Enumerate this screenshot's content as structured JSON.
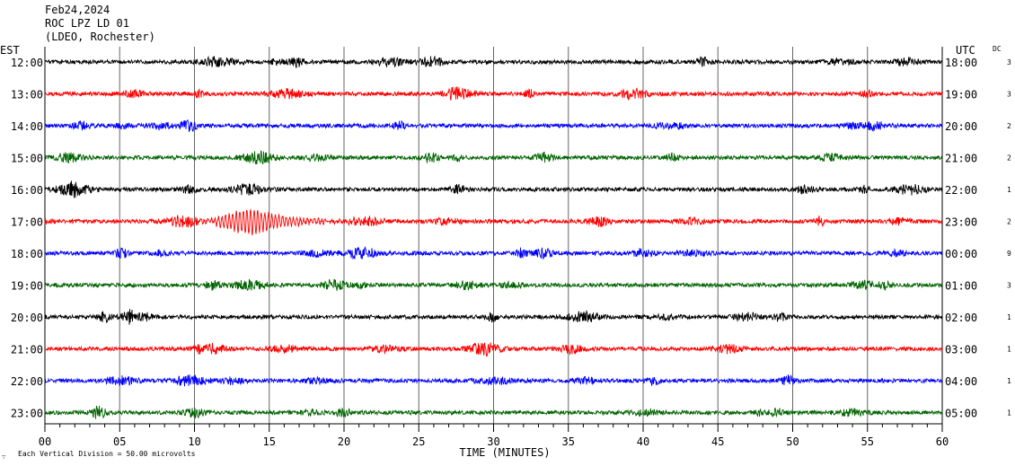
{
  "header": {
    "date": "Feb24,2024",
    "station": "ROC LPZ LD 01",
    "network": "(LDEO, Rochester)"
  },
  "chart_data": {
    "type": "line",
    "title": "",
    "left_axis_label": "EST",
    "right_axis_label": "UTC",
    "dc_label": "DC",
    "xlabel": "TIME (MINUTES)",
    "xlim": [
      0,
      60
    ],
    "x_ticks": [
      "00",
      "05",
      "10",
      "15",
      "20",
      "25",
      "30",
      "35",
      "40",
      "45",
      "50",
      "55",
      "60"
    ],
    "footnote": "Each Vertical Division =   50.00 microvolts",
    "colors": [
      "#000000",
      "#ff0000",
      "#0000ff",
      "#006400"
    ],
    "rows": [
      {
        "est": "12:00",
        "utc": "18:00",
        "dc": "3"
      },
      {
        "est": "13:00",
        "utc": "19:00",
        "dc": "3"
      },
      {
        "est": "14:00",
        "utc": "20:00",
        "dc": "2"
      },
      {
        "est": "15:00",
        "utc": "21:00",
        "dc": "2"
      },
      {
        "est": "16:00",
        "utc": "22:00",
        "dc": "1"
      },
      {
        "est": "17:00",
        "utc": "23:00",
        "dc": "2"
      },
      {
        "est": "18:00",
        "utc": "00:00",
        "dc": "9"
      },
      {
        "est": "19:00",
        "utc": "01:00",
        "dc": "3"
      },
      {
        "est": "20:00",
        "utc": "02:00",
        "dc": "1"
      },
      {
        "est": "21:00",
        "utc": "03:00",
        "dc": "1"
      },
      {
        "est": "22:00",
        "utc": "04:00",
        "dc": "1"
      },
      {
        "est": "23:00",
        "utc": "05:00",
        "dc": "1"
      }
    ],
    "events": [
      {
        "row": 5,
        "start_min": 10.5,
        "peak_min": 13.8,
        "end_min": 21.0
      }
    ]
  }
}
